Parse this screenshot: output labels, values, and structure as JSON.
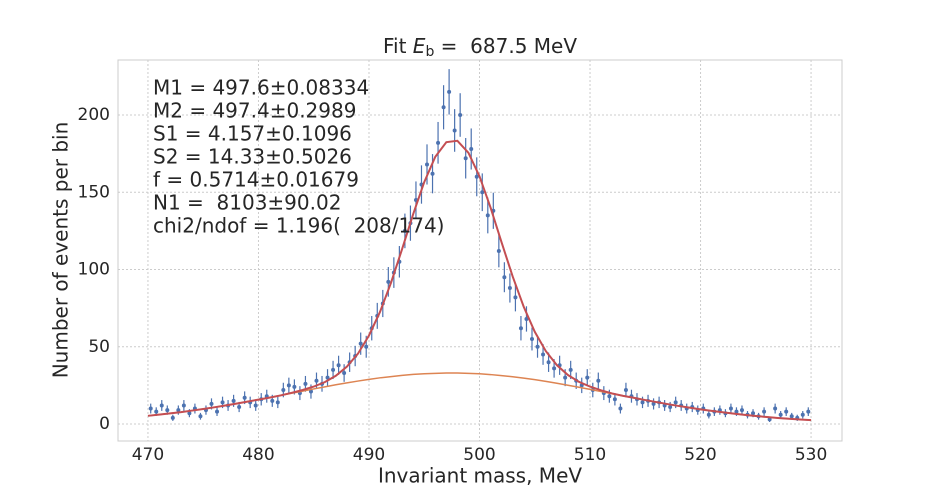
{
  "chart_data": {
    "type": "errorbar",
    "title_parts": [
      "Fit ",
      "E",
      "b",
      " =  687.5 MeV"
    ],
    "xlabel": "Invariant mass, MeV",
    "ylabel": "Number of events per bin",
    "annotation": [
      "M1 = 497.6±0.08334",
      "M2 = 497.4±0.2989",
      "S1 = 4.157±0.1096",
      "S2 = 14.33±0.5026",
      "f = 0.5714±0.01679",
      "N1 =  8103±90.02",
      "chi2/ndof = 1.196(  208/174)"
    ],
    "xlim": [
      467.29,
      532.8
    ],
    "ylim": [
      -11,
      235.6
    ],
    "xticks": [
      470,
      480,
      490,
      500,
      510,
      520,
      530
    ],
    "yticks": [
      0,
      50,
      100,
      150,
      200
    ],
    "grid": true,
    "points": {
      "color": "#4c72b0",
      "x": [
        470.25,
        470.75,
        471.25,
        471.75,
        472.25,
        472.75,
        473.25,
        473.75,
        474.25,
        474.75,
        475.25,
        475.75,
        476.25,
        476.75,
        477.25,
        477.75,
        478.25,
        478.75,
        479.25,
        479.75,
        480.25,
        480.75,
        481.25,
        481.75,
        482.25,
        482.75,
        483.25,
        483.75,
        484.25,
        484.75,
        485.25,
        485.75,
        486.25,
        486.75,
        487.25,
        487.75,
        488.25,
        488.75,
        489.25,
        489.75,
        490.25,
        490.75,
        491.25,
        491.75,
        492.25,
        492.75,
        493.25,
        493.75,
        494.25,
        494.75,
        495.25,
        495.75,
        496.25,
        496.75,
        497.25,
        497.75,
        498.25,
        498.75,
        499.25,
        499.75,
        500.25,
        500.75,
        501.25,
        501.75,
        502.25,
        502.75,
        503.25,
        503.75,
        504.25,
        504.75,
        505.25,
        505.75,
        506.25,
        506.75,
        507.25,
        507.75,
        508.25,
        508.75,
        509.25,
        509.75,
        510.25,
        510.75,
        511.25,
        511.75,
        512.25,
        512.75,
        513.25,
        513.75,
        514.25,
        514.75,
        515.25,
        515.75,
        516.25,
        516.75,
        517.25,
        517.75,
        518.25,
        518.75,
        519.25,
        519.75,
        520.25,
        520.75,
        521.25,
        521.75,
        522.25,
        522.75,
        523.25,
        523.75,
        524.25,
        524.75,
        525.25,
        525.75,
        526.25,
        526.75,
        527.25,
        527.75,
        528.25,
        528.75,
        529.25,
        529.75
      ],
      "values": [
        10,
        8,
        12,
        9,
        4,
        9,
        12,
        7,
        10,
        5,
        9,
        13,
        8,
        14,
        12,
        15,
        11,
        17,
        14,
        12,
        16,
        18,
        15,
        14,
        22,
        25,
        24,
        20,
        26,
        21,
        28,
        26,
        30,
        35,
        38,
        33,
        40,
        44,
        52,
        50,
        62,
        70,
        78,
        92,
        98,
        105,
        125,
        130,
        145,
        155,
        168,
        162,
        182,
        205,
        215,
        190,
        200,
        172,
        178,
        160,
        150,
        135,
        138,
        112,
        95,
        88,
        82,
        62,
        68,
        55,
        50,
        45,
        40,
        36,
        38,
        30,
        35,
        28,
        25,
        30,
        22,
        28,
        20,
        18,
        16,
        10,
        22,
        18,
        16,
        14,
        15,
        13,
        14,
        12,
        11,
        14,
        12,
        10,
        11,
        9,
        10,
        6,
        8,
        9,
        7,
        10,
        8,
        9,
        6,
        7,
        5,
        8,
        3,
        10,
        6,
        8,
        5,
        4,
        6,
        8
      ],
      "errors": [
        3.2,
        2.8,
        3.5,
        3.0,
        2.0,
        3.0,
        3.5,
        2.6,
        3.2,
        2.2,
        3.0,
        3.6,
        2.8,
        3.7,
        3.5,
        3.9,
        3.3,
        4.1,
        3.7,
        3.5,
        4.0,
        4.2,
        3.9,
        3.7,
        4.7,
        5.0,
        4.9,
        4.5,
        5.1,
        4.6,
        5.3,
        5.1,
        5.5,
        5.9,
        6.2,
        5.7,
        6.3,
        6.6,
        7.2,
        7.1,
        7.9,
        8.4,
        8.8,
        9.6,
        9.9,
        10.2,
        11.2,
        11.4,
        12.0,
        12.4,
        13.0,
        12.7,
        13.5,
        14.3,
        14.7,
        13.8,
        14.1,
        13.1,
        13.3,
        12.6,
        12.2,
        11.6,
        11.7,
        10.6,
        9.7,
        9.4,
        9.1,
        7.9,
        8.2,
        7.4,
        7.1,
        6.7,
        6.3,
        6.0,
        6.2,
        5.5,
        5.9,
        5.3,
        5.0,
        5.5,
        4.7,
        5.3,
        4.5,
        4.2,
        4.0,
        3.2,
        4.7,
        4.2,
        4.0,
        3.7,
        3.9,
        3.6,
        3.7,
        3.5,
        3.3,
        3.7,
        3.5,
        3.2,
        3.3,
        3.0,
        3.2,
        2.4,
        2.8,
        3.0,
        2.6,
        3.2,
        2.8,
        3.0,
        2.4,
        2.6,
        2.2,
        2.8,
        1.7,
        3.2,
        2.4,
        2.8,
        2.2,
        2.0,
        2.4,
        2.8
      ]
    },
    "curve_x": [
      470,
      471,
      472,
      473,
      474,
      475,
      476,
      477,
      478,
      479,
      480,
      481,
      482,
      483,
      484,
      485,
      486,
      487,
      488,
      489,
      490,
      491,
      492,
      493,
      494,
      495,
      496,
      497,
      498,
      499,
      500,
      501,
      502,
      503,
      504,
      505,
      506,
      507,
      508,
      509,
      510,
      511,
      512,
      513,
      514,
      515,
      516,
      517,
      518,
      519,
      520,
      521,
      522,
      523,
      524,
      525,
      526,
      527,
      528,
      529,
      530
    ],
    "fit_background": {
      "color": "#dd8452",
      "values": [
        5.3,
        6.1,
        6.9,
        7.7,
        8.7,
        9.7,
        10.8,
        12.0,
        13.2,
        14.5,
        15.8,
        17.1,
        18.5,
        19.9,
        21.3,
        22.7,
        24.0,
        25.4,
        26.6,
        27.8,
        28.9,
        29.9,
        30.7,
        31.5,
        32.1,
        32.5,
        32.8,
        33.0,
        33.0,
        32.8,
        32.5,
        32.0,
        31.3,
        30.6,
        29.7,
        28.7,
        27.6,
        26.4,
        25.1,
        23.8,
        22.4,
        21.0,
        19.6,
        18.2,
        16.9,
        15.5,
        14.2,
        12.9,
        11.7,
        10.6,
        9.5,
        8.5,
        7.6,
        6.7,
        5.9,
        5.2,
        4.5,
        3.9,
        3.4,
        2.9,
        2.5
      ]
    },
    "fit_total": {
      "color": "#c44e52",
      "values": [
        5.3,
        6.1,
        6.9,
        7.7,
        8.7,
        9.7,
        10.8,
        12.0,
        13.2,
        14.5,
        15.8,
        17.1,
        18.5,
        20.2,
        22.0,
        24.2,
        27.1,
        31.2,
        37.1,
        45.5,
        57.3,
        72.6,
        91.6,
        113.3,
        135.9,
        156.6,
        173.0,
        182.4,
        183.3,
        175.5,
        160.3,
        140.1,
        117.5,
        95.5,
        75.9,
        59.7,
        47.2,
        38.1,
        31.7,
        27.3,
        24.2,
        21.8,
        19.8,
        18.2,
        16.9,
        15.5,
        14.2,
        12.9,
        11.7,
        10.6,
        9.5,
        8.5,
        7.6,
        6.7,
        5.9,
        5.2,
        4.5,
        3.9,
        3.4,
        2.9,
        2.5
      ]
    }
  }
}
